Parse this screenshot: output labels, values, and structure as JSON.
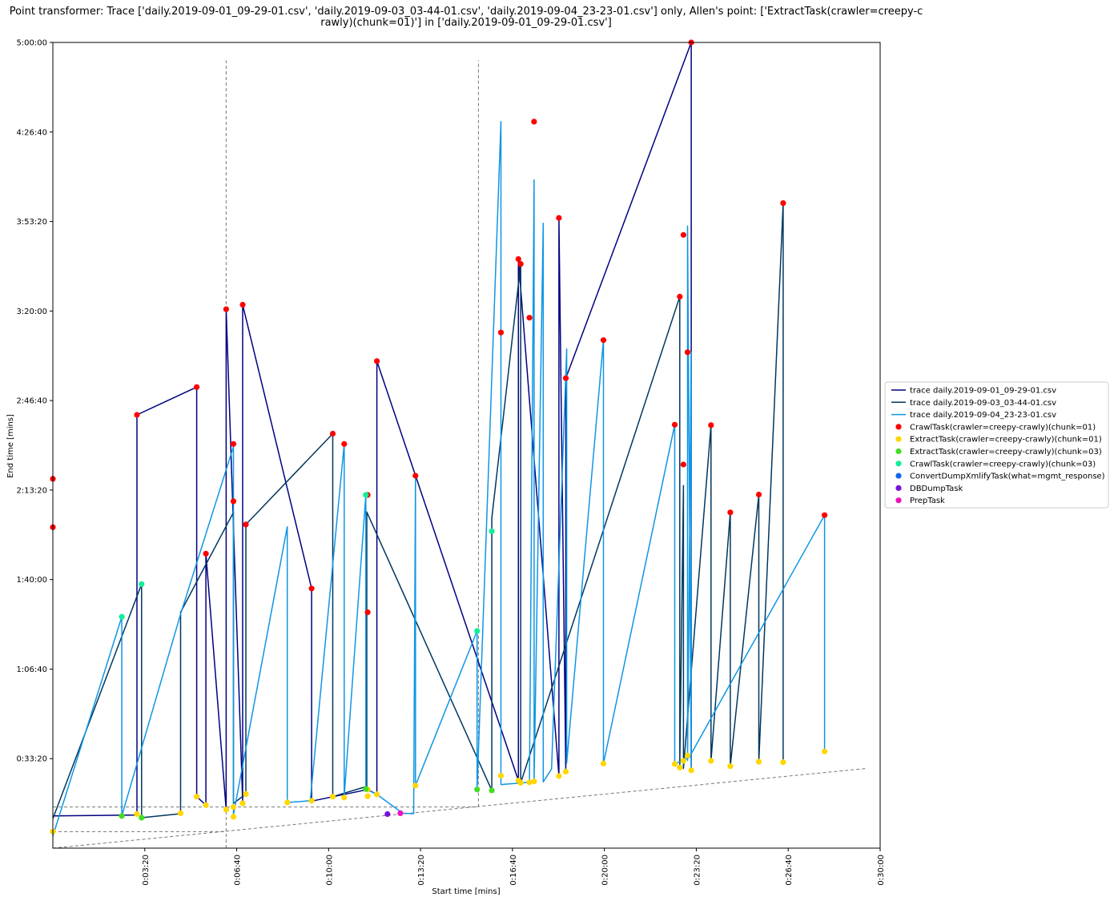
{
  "chart_data": {
    "type": "scatter",
    "title_lines": [
      "Point transformer: Trace ['daily.2019-09-01_09-29-01.csv', 'daily.2019-09-03_03-44-01.csv', 'daily.2019-09-04_23-23-01.csv'] only, Allen's point: ['ExtractTask(crawler=creepy-c",
      "rawly)(chunk=01)'] in ['daily.2019-09-01_09-29-01.csv']"
    ],
    "xlabel": "Start time [mins]",
    "ylabel": "End time [mins]",
    "xlim": [
      0,
      1800
    ],
    "ylim": [
      0,
      18000
    ],
    "x_ticks": [
      {
        "value": 200,
        "label": "0:03:20"
      },
      {
        "value": 400,
        "label": "0:06:40"
      },
      {
        "value": 600,
        "label": "0:10:00"
      },
      {
        "value": 800,
        "label": "0:13:20"
      },
      {
        "value": 1000,
        "label": "0:16:40"
      },
      {
        "value": 1200,
        "label": "0:20:00"
      },
      {
        "value": 1400,
        "label": "0:23:20"
      },
      {
        "value": 1600,
        "label": "0:26:40"
      },
      {
        "value": 1800,
        "label": "0:30:00"
      }
    ],
    "y_ticks": [
      {
        "value": 2000,
        "label": "0:33:20"
      },
      {
        "value": 4000,
        "label": "1:06:40"
      },
      {
        "value": 6000,
        "label": "1:40:00"
      },
      {
        "value": 8000,
        "label": "2:13:20"
      },
      {
        "value": 10000,
        "label": "2:46:40"
      },
      {
        "value": 12000,
        "label": "3:20:00"
      },
      {
        "value": 14000,
        "label": "3:53:20"
      },
      {
        "value": 16000,
        "label": "4:26:40"
      },
      {
        "value": 18000,
        "label": "5:00:00"
      }
    ],
    "legend_position": "right",
    "reference_lines": {
      "vertical": [
        {
          "x": 377,
          "y_from": 0,
          "y_to": 17600
        },
        {
          "x": 926,
          "y_from": 920,
          "y_to": 17600
        }
      ],
      "horizontal": [
        {
          "y": 920,
          "x_from": 0,
          "x_to": 926
        },
        {
          "y": 370,
          "x_from": 0,
          "x_to": 377
        }
      ],
      "diagonal": {
        "x1": 0,
        "y1": 0,
        "x2": 1770,
        "y2": 1780
      }
    },
    "traces": [
      {
        "name": "trace daily.2019-09-01_09-29-01.csv",
        "color": "#000080",
        "points": [
          [
            0,
            720
          ],
          [
            183,
            740
          ],
          [
            183,
            9680
          ],
          [
            313,
            10300
          ],
          [
            313,
            1150
          ],
          [
            333,
            960
          ],
          [
            333,
            6580
          ],
          [
            377,
            860
          ],
          [
            377,
            12040
          ],
          [
            413,
            1050
          ],
          [
            413,
            12140
          ],
          [
            563,
            5800
          ],
          [
            563,
            1050
          ],
          [
            685,
            1310
          ],
          [
            705,
            1200
          ],
          [
            705,
            10880
          ],
          [
            1013,
            1510
          ],
          [
            1013,
            13160
          ],
          [
            1101,
            1610
          ],
          [
            1101,
            14080
          ],
          [
            1116,
            1710
          ],
          [
            1116,
            10500
          ],
          [
            1389,
            18000
          ],
          [
            1389,
            1740
          ]
        ]
      },
      {
        "name": "trace daily.2019-09-03_03-44-01.csv",
        "color": "#00375f",
        "points": [
          [
            0,
            660
          ],
          [
            193,
            5900
          ],
          [
            193,
            680
          ],
          [
            278,
            770
          ],
          [
            278,
            5270
          ],
          [
            393,
            7500
          ],
          [
            393,
            1000
          ],
          [
            420,
            1210
          ],
          [
            420,
            7230
          ],
          [
            609,
            9260
          ],
          [
            609,
            1150
          ],
          [
            683,
            1380
          ],
          [
            683,
            7510
          ],
          [
            955,
            1290
          ],
          [
            955,
            7370
          ],
          [
            1018,
            13050
          ],
          [
            1018,
            1460
          ],
          [
            1364,
            12320
          ],
          [
            1364,
            1840
          ],
          [
            1372,
            8100
          ],
          [
            1372,
            1780
          ],
          [
            1432,
            9450
          ],
          [
            1432,
            1950
          ],
          [
            1474,
            7500
          ],
          [
            1474,
            1830
          ],
          [
            1536,
            7900
          ],
          [
            1536,
            1930
          ],
          [
            1589,
            14410
          ],
          [
            1589,
            1920
          ]
        ]
      },
      {
        "name": "trace daily.2019-09-04_23-23-01.csv",
        "color": "#0e96e4",
        "points": [
          [
            0,
            270
          ],
          [
            150,
            5170
          ],
          [
            150,
            720
          ],
          [
            278,
            5230
          ],
          [
            393,
            8970
          ],
          [
            393,
            750
          ],
          [
            510,
            7180
          ],
          [
            510,
            1020
          ],
          [
            560,
            1060
          ],
          [
            634,
            9030
          ],
          [
            634,
            1150
          ],
          [
            681,
            7890
          ],
          [
            681,
            1320
          ],
          [
            705,
            1200
          ],
          [
            761,
            780
          ],
          [
            785,
            770
          ],
          [
            789,
            8320
          ],
          [
            789,
            1400
          ],
          [
            923,
            4850
          ],
          [
            923,
            1310
          ],
          [
            975,
            16230
          ],
          [
            975,
            1420
          ],
          [
            1037,
            1470
          ],
          [
            1047,
            14930
          ],
          [
            1047,
            1490
          ],
          [
            1067,
            13960
          ],
          [
            1067,
            1480
          ],
          [
            1085,
            1770
          ],
          [
            1118,
            11150
          ],
          [
            1118,
            1900
          ],
          [
            1198,
            11350
          ],
          [
            1198,
            1890
          ],
          [
            1353,
            9460
          ],
          [
            1353,
            1880
          ],
          [
            1389,
            2050
          ],
          [
            1389,
            1790
          ],
          [
            1381,
            13900
          ],
          [
            1381,
            1960
          ],
          [
            1389,
            11080
          ],
          [
            1389,
            2110
          ],
          [
            1679,
            7440
          ],
          [
            1679,
            2160
          ]
        ]
      }
    ],
    "scatter_series": [
      {
        "name": "CrawlTask(crawler=creepy-crawly)(chunk=01)",
        "color": "#ff0000",
        "points": [
          [
            0,
            8250
          ],
          [
            0,
            7170
          ],
          [
            183,
            9680
          ],
          [
            313,
            10300
          ],
          [
            333,
            6580
          ],
          [
            377,
            12040
          ],
          [
            393,
            9030
          ],
          [
            393,
            7750
          ],
          [
            413,
            12140
          ],
          [
            420,
            7230
          ],
          [
            563,
            5800
          ],
          [
            609,
            9260
          ],
          [
            634,
            9030
          ],
          [
            685,
            7890
          ],
          [
            685,
            5270
          ],
          [
            705,
            10880
          ],
          [
            789,
            8320
          ],
          [
            975,
            11520
          ],
          [
            1013,
            13160
          ],
          [
            1018,
            13050
          ],
          [
            1037,
            11850
          ],
          [
            1047,
            16230
          ],
          [
            1101,
            14080
          ],
          [
            1116,
            10500
          ],
          [
            1198,
            11350
          ],
          [
            1353,
            9460
          ],
          [
            1364,
            12320
          ],
          [
            1372,
            13700
          ],
          [
            1372,
            8570
          ],
          [
            1381,
            11080
          ],
          [
            1389,
            18000
          ],
          [
            1432,
            9450
          ],
          [
            1474,
            7500
          ],
          [
            1536,
            7900
          ],
          [
            1589,
            14410
          ],
          [
            1679,
            7440
          ]
        ]
      },
      {
        "name": "ExtractTask(crawler=creepy-crawly)(chunk=01)",
        "color": "#ffd700",
        "points": [
          [
            0,
            370
          ],
          [
            183,
            760
          ],
          [
            278,
            780
          ],
          [
            313,
            1150
          ],
          [
            333,
            960
          ],
          [
            377,
            860
          ],
          [
            393,
            700
          ],
          [
            393,
            920
          ],
          [
            413,
            1000
          ],
          [
            420,
            1210
          ],
          [
            510,
            1020
          ],
          [
            563,
            1060
          ],
          [
            609,
            1150
          ],
          [
            634,
            1130
          ],
          [
            685,
            1310
          ],
          [
            685,
            1160
          ],
          [
            705,
            1200
          ],
          [
            789,
            1400
          ],
          [
            975,
            1620
          ],
          [
            1013,
            1510
          ],
          [
            1018,
            1460
          ],
          [
            1037,
            1470
          ],
          [
            1047,
            1490
          ],
          [
            1101,
            1610
          ],
          [
            1116,
            1710
          ],
          [
            1198,
            1890
          ],
          [
            1353,
            1880
          ],
          [
            1364,
            1800
          ],
          [
            1372,
            1950
          ],
          [
            1381,
            2070
          ],
          [
            1389,
            1740
          ],
          [
            1432,
            1950
          ],
          [
            1474,
            1830
          ],
          [
            1536,
            1930
          ],
          [
            1589,
            1920
          ],
          [
            1679,
            2160
          ]
        ]
      },
      {
        "name": "ExtractTask(crawler=creepy-crawly)(chunk=03)",
        "color": "#44dd22",
        "points": [
          [
            150,
            720
          ],
          [
            193,
            680
          ],
          [
            681,
            1320
          ],
          [
            923,
            1310
          ],
          [
            955,
            1290
          ]
        ]
      },
      {
        "name": "CrawlTask(crawler=creepy-crawly)(chunk=03)",
        "color": "#11ee99",
        "points": [
          [
            150,
            5170
          ],
          [
            193,
            5900
          ],
          [
            681,
            7890
          ],
          [
            923,
            4850
          ],
          [
            955,
            7080
          ]
        ]
      },
      {
        "name": "ConvertDumpXmlifyTask(what=mgmt_response)",
        "color": "#1166ee",
        "points": []
      },
      {
        "name": "DBDumpTask",
        "color": "#7711dd",
        "points": [
          [
            728,
            760
          ]
        ]
      },
      {
        "name": "PrepTask",
        "color": "#ee11bb",
        "points": [
          [
            756,
            780
          ]
        ]
      }
    ]
  }
}
